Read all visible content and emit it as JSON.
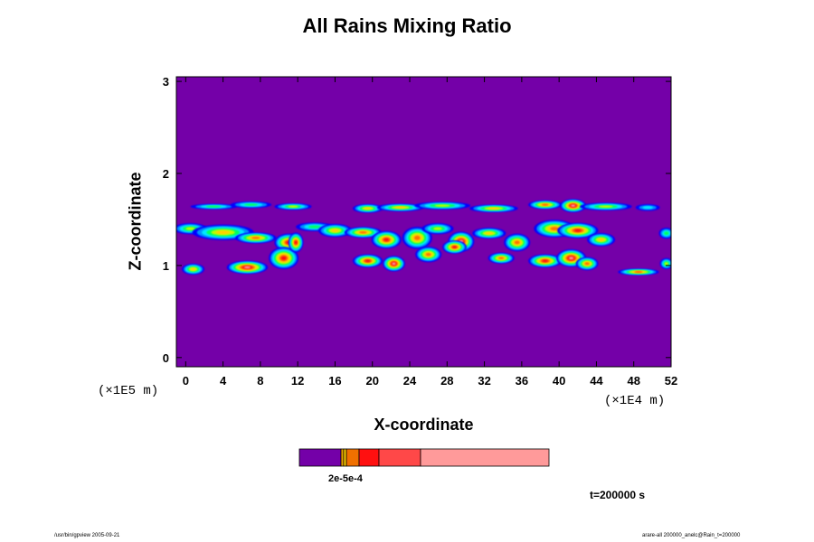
{
  "chart_data": {
    "type": "heatmap",
    "title": "All Rains Mixing Ratio",
    "xlabel": "X-coordinate",
    "ylabel": "Z-coordinate",
    "x_unit": "(×1E4 m)",
    "y_unit": "(×1E5 m)",
    "xlim": [
      -1,
      52
    ],
    "ylim": [
      -0.1,
      3.05
    ],
    "x_ticks": [
      "0",
      "4",
      "8",
      "12",
      "16",
      "20",
      "24",
      "28",
      "32",
      "36",
      "40",
      "44",
      "48",
      "52"
    ],
    "y_ticks": [
      "0",
      "1",
      "2",
      "3"
    ],
    "background_color": "#7400a8",
    "colorbar_colors": [
      "#7400a8",
      "#e8a000",
      "#ffd000",
      "#f07000",
      "#ff1010",
      "#ff4848",
      "#ff9a9a"
    ],
    "colorbar_label": "2e-5e-4",
    "time_label": "t=200000 s",
    "footer_left": "/usr/bin/gpview 2005-09-21",
    "footer_right": "arare-all 200000_anelc@Rain_t=200000",
    "cloud_band_z": [
      0.85,
      1.75
    ],
    "cloud_cores_x": [
      6.5,
      11.5,
      23,
      29,
      34.5,
      41,
      49
    ]
  }
}
